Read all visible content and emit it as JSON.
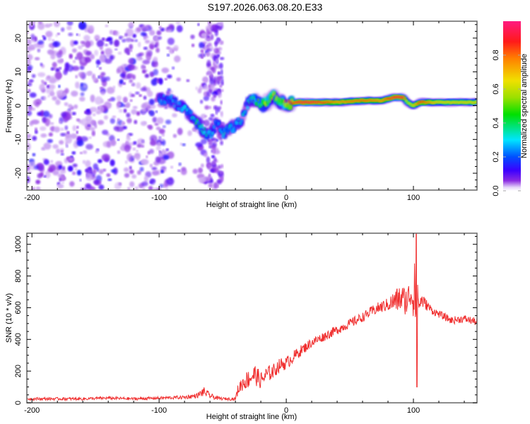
{
  "title": "S197.2026.063.08.20.E33",
  "chart_data": [
    {
      "type": "heatmap",
      "name": "spectrogram",
      "xlabel": "Height of straight line (km)",
      "ylabel": "Frequency (Hz)",
      "xlim": [
        -204,
        150
      ],
      "ylim": [
        -25,
        25
      ],
      "xticks": [
        -200,
        -100,
        0,
        100
      ],
      "xtick_labels": [
        "-200",
        "-100",
        "0",
        "100"
      ],
      "yticks": [
        -20,
        -10,
        0,
        10,
        20
      ],
      "ytick_labels": [
        "-20",
        "-10",
        "0",
        "10",
        "20"
      ],
      "colorbar": {
        "label": "Normalized spectral amplitude",
        "range": [
          0.0,
          1.0
        ],
        "ticks": [
          0.0,
          0.2,
          0.4,
          0.6,
          0.8
        ],
        "tick_labels": [
          "0.0",
          "0.2",
          "0.4",
          "0.6",
          "0.8"
        ],
        "colormap": [
          "#ffffff",
          "#e6d6fa",
          "#8a2be2",
          "#3c00ff",
          "#0050ff",
          "#00e5ff",
          "#00e000",
          "#9be000",
          "#f0e000",
          "#ff8000",
          "#ff1a1a",
          "#ff1a80"
        ]
      },
      "noise_region_x": [
        -204,
        -52
      ],
      "ridge": {
        "description": "dominant frequency track",
        "x": [
          -100,
          -90,
          -80,
          -72,
          -66,
          -60,
          -55,
          -50,
          -45,
          -40,
          -35,
          -30,
          -25,
          -20,
          -15,
          -10,
          -5,
          0,
          10,
          20,
          40,
          60,
          75,
          85,
          92,
          95,
          100,
          105,
          120,
          140,
          150
        ],
        "y": [
          2,
          1.5,
          -1,
          -4,
          -7,
          -9,
          -5,
          -8,
          -7,
          -6,
          -4,
          1,
          2,
          0,
          1,
          3,
          1,
          0.5,
          1,
          1,
          1,
          1.5,
          1.5,
          2.5,
          2.5,
          1,
          0,
          1,
          1,
          1,
          1
        ],
        "amplitude": [
          0.25,
          0.25,
          0.3,
          0.35,
          0.35,
          0.3,
          0.25,
          0.3,
          0.35,
          0.3,
          0.3,
          0.3,
          0.4,
          0.5,
          0.6,
          0.7,
          0.6,
          0.75,
          0.95,
          0.95,
          0.8,
          0.85,
          0.8,
          0.95,
          0.95,
          0.6,
          0.7,
          0.9,
          0.7,
          0.7,
          0.7
        ]
      }
    },
    {
      "type": "line",
      "name": "snr",
      "xlabel": "Height of straight line (km)",
      "ylabel": "SNR (10 * v/v)",
      "xlim": [
        -204,
        150
      ],
      "ylim": [
        0,
        1070
      ],
      "xticks": [
        -200,
        -100,
        0,
        100
      ],
      "xtick_labels": [
        "-200",
        "-100",
        "0",
        "100"
      ],
      "yticks": [
        0,
        200,
        400,
        600,
        800,
        1000
      ],
      "ytick_labels": [
        "0",
        "200",
        "400",
        "600",
        "800",
        "1000"
      ],
      "color": "#f03030",
      "series": [
        {
          "name": "SNR",
          "x": [
            -204,
            -180,
            -160,
            -140,
            -120,
            -100,
            -80,
            -70,
            -65,
            -60,
            -55,
            -50,
            -45,
            -40,
            -38,
            -35,
            -30,
            -25,
            -20,
            -15,
            -10,
            -5,
            0,
            10,
            20,
            30,
            40,
            50,
            60,
            70,
            80,
            85,
            90,
            95,
            98,
            100,
            102,
            104,
            106,
            110,
            115,
            120,
            125,
            130,
            140,
            150
          ],
          "y": [
            25,
            25,
            25,
            30,
            25,
            30,
            35,
            45,
            70,
            45,
            30,
            25,
            25,
            25,
            80,
            120,
            150,
            180,
            140,
            180,
            200,
            240,
            250,
            320,
            380,
            420,
            460,
            500,
            540,
            590,
            620,
            640,
            660,
            640,
            700,
            640,
            1070,
            600,
            650,
            620,
            580,
            560,
            540,
            520,
            530,
            510
          ],
          "noise_amplitude": [
            15,
            15,
            15,
            15,
            15,
            15,
            20,
            25,
            50,
            30,
            20,
            15,
            15,
            15,
            60,
            80,
            100,
            110,
            90,
            90,
            80,
            70,
            70,
            60,
            50,
            50,
            50,
            50,
            50,
            60,
            70,
            120,
            150,
            150,
            180,
            200,
            500,
            150,
            80,
            60,
            40,
            40,
            40,
            40,
            40,
            40
          ]
        }
      ]
    }
  ]
}
